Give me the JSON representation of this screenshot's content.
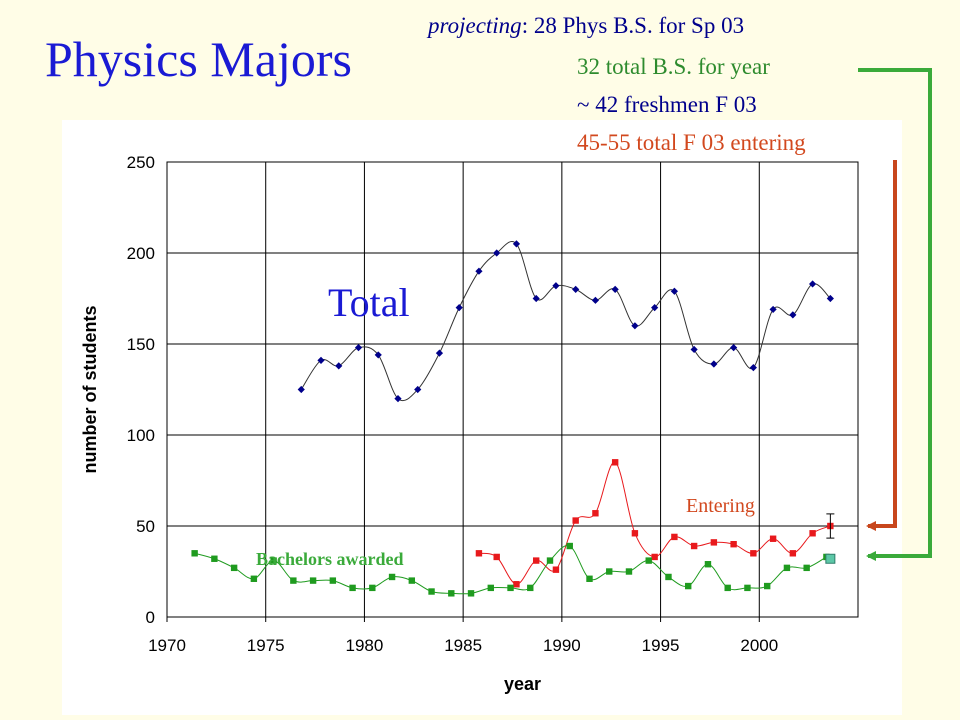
{
  "slide": {
    "title": "Physics Majors",
    "projection": {
      "lead": "projecting",
      "sep": ":",
      "line1": "28 Phys B.S. for Sp 03",
      "line2": "32 total B.S. for year",
      "line3": "~ 42 freshmen  F 03",
      "line4": "45-55 total F 03 entering"
    },
    "colors": {
      "background": "#fffde7",
      "title": "#1a1ad4",
      "total": "#00008b",
      "entering": "#e8191c",
      "bachelors": "#1f9b1f",
      "green_text": "#2e8b2e",
      "orange_text": "#d2481e",
      "green_arrow": "#3aaa3a",
      "orange_arrow": "#c8461c"
    }
  },
  "chart_data": {
    "type": "scatter",
    "xlabel": "year",
    "ylabel": "number of students",
    "xlim": [
      1970,
      2005
    ],
    "ylim": [
      0,
      250
    ],
    "xticks": [
      1970,
      1975,
      1980,
      1985,
      1990,
      1995,
      2000
    ],
    "yticks": [
      0,
      50,
      100,
      150,
      200,
      250
    ],
    "grid": true,
    "annotations": [
      "Total",
      "Entering",
      "Bachelors awarded"
    ],
    "series": [
      {
        "name": "Total",
        "marker": "diamond",
        "x": [
          1976.8,
          1977.8,
          1978.7,
          1979.7,
          1980.7,
          1981.7,
          1982.7,
          1983.8,
          1984.8,
          1985.8,
          1986.7,
          1987.7,
          1988.7,
          1989.7,
          1990.7,
          1991.7,
          1992.7,
          1993.7,
          1994.7,
          1995.7,
          1996.7,
          1997.7,
          1998.7,
          1999.7,
          2000.7,
          2001.7,
          2002.7,
          2003.6
        ],
        "values": [
          125,
          141,
          138,
          148,
          144,
          120,
          125,
          145,
          170,
          190,
          200,
          205,
          175,
          182,
          180,
          174,
          180,
          160,
          170,
          179,
          147,
          139,
          148,
          137,
          169,
          166,
          183,
          175
        ]
      },
      {
        "name": "Entering",
        "marker": "square",
        "x": [
          1985.8,
          1986.7,
          1987.7,
          1988.7,
          1989.7,
          1990.7,
          1991.7,
          1992.7,
          1993.7,
          1994.7,
          1995.7,
          1996.7,
          1997.7,
          1998.7,
          1999.7,
          2000.7,
          2001.7,
          2002.7,
          2003.6
        ],
        "values": [
          35,
          33,
          18,
          31,
          26,
          53,
          57,
          85,
          46,
          33,
          44,
          39,
          41,
          40,
          35,
          43,
          35,
          46,
          50
        ]
      },
      {
        "name": "Bachelors awarded",
        "marker": "square",
        "x": [
          1971.4,
          1972.4,
          1973.4,
          1974.4,
          1975.4,
          1976.4,
          1977.4,
          1978.4,
          1979.4,
          1980.4,
          1981.4,
          1982.4,
          1983.4,
          1984.4,
          1985.4,
          1986.4,
          1987.4,
          1988.4,
          1989.4,
          1990.4,
          1991.4,
          1992.4,
          1993.4,
          1994.4,
          1995.4,
          1996.4,
          1997.4,
          1998.4,
          1999.4,
          2000.4,
          2001.4,
          2002.4,
          2003.4
        ],
        "values": [
          35,
          32,
          27,
          21,
          31,
          20,
          20,
          20,
          16,
          16,
          22,
          20,
          14,
          13,
          13,
          16,
          16,
          16,
          31,
          39,
          21,
          25,
          25,
          31,
          22,
          17,
          29,
          16,
          16,
          17,
          27,
          27,
          33
        ]
      }
    ],
    "projection_point": {
      "x": 2003.6,
      "value": 50,
      "range": [
        45,
        55
      ]
    },
    "projection_bachelors": {
      "x": 2003.6,
      "value": 32
    }
  }
}
